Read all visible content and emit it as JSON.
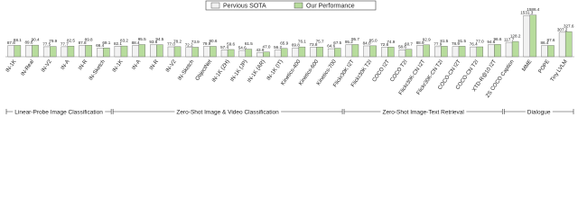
{
  "chart_data": {
    "type": "bar",
    "log_scale": true,
    "ylim": [
      30,
      2000
    ],
    "series": [
      {
        "name": "Pervious SOTA",
        "color": "#f2f2f2",
        "values": [
          87.8,
          89.6,
          77.5,
          77.7,
          87.8,
          66.4,
          82.1,
          88.4,
          93.8,
          77.0,
          72.2,
          79.9,
          57.4,
          54.6,
          43.9,
          56.2,
          69.8,
          73.8,
          64.6,
          95.2,
          84.0,
          72.6,
          58.6,
          88.9,
          77.9,
          78.9,
          76.4,
          94.6,
          117.7,
          1531.3,
          86.4,
          307.2
        ],
        "value_labels": [
          "87.8",
          "89.6",
          "77.5",
          "77.7",
          "87.8",
          "66.4",
          "82.1",
          "88.4",
          "93.8",
          "77.0",
          "72.2",
          "79.9",
          "57.4",
          "54.6",
          "43.9",
          "56.2",
          "69.8",
          "73.8",
          "64.6",
          "95.2",
          "84.0",
          "72.6",
          "58.6",
          "88.9",
          "77.9",
          "78.9",
          "76.4",
          "94.6",
          "117.7",
          "1531.3",
          "86.4",
          "307.2"
        ]
      },
      {
        "name": "Our Performance",
        "color": "#b7dc9c",
        "values": [
          88.1,
          90.4,
          79.9,
          82.5,
          89.8,
          69.1,
          83.2,
          95.5,
          94.5,
          78.2,
          73.9,
          80.6,
          59.6,
          61.5,
          47.0,
          65.9,
          76.1,
          75.7,
          67.5,
          95.7,
          85.0,
          74.9,
          60.7,
          92.9,
          81.5,
          81.5,
          77.0,
          96.6,
          128.2,
          1586.4,
          87.6,
          327.6
        ],
        "value_labels": [
          "88.1",
          "90.4",
          "79.9",
          "82.5",
          "89.8",
          "69.1",
          "83.2",
          "95.5",
          "94.5",
          "78.2",
          "73.9",
          "80.6",
          "59.6",
          "61.5",
          "47.0",
          "65.9",
          "76.1",
          "75.7",
          "67.5",
          "95.7",
          "85.0",
          "74.9",
          "60.7",
          "92.9",
          "81.5",
          "81.5",
          "77.0",
          "96.6",
          "128.2",
          "1586.4",
          "87.6",
          "327.6"
        ]
      }
    ],
    "groups": [
      {
        "label": "Linear-Probe Image Classification",
        "categories": [
          "IN-1K",
          "IN-Real",
          "IN-V2",
          "IN-A",
          "IN-R",
          "IN-Sketch"
        ]
      },
      {
        "label": "Zero-Shot Image & Video Classification",
        "categories": [
          "IN-1K",
          "IN-A",
          "IN-R",
          "IN-V2",
          "IN-Sketch",
          "ObjectNet",
          "IN-1K (ZH)",
          "IN-1K (JP)",
          "IN-1K (AR)",
          "IN-1K (IT)",
          "Kinetics-400",
          "Kinetics-600",
          "Kinetics-700"
        ]
      },
      {
        "label": "Zero-Shot Image-Text Retrieval",
        "categories": [
          "Flickr30K I2T",
          "Flickr30K T2I",
          "COCO I2T",
          "COCO T2I",
          "Flickr30K-CN I2T",
          "Flickr30K-CN T2I",
          "COCO-CN I2T",
          "COCO-CN T2I",
          "XTD-R@10 I2T"
        ]
      },
      {
        "label": "Dialogue",
        "categories": [
          "ZS COCO Caption",
          "MME",
          "POPE",
          "Tiny LVLM"
        ]
      }
    ]
  }
}
